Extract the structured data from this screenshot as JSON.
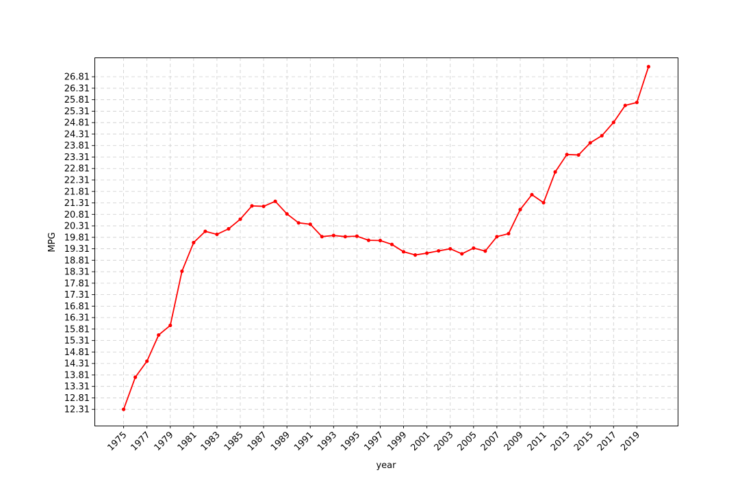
{
  "chart_data": {
    "type": "line",
    "title": "",
    "xlabel": "year",
    "ylabel": "MPG",
    "grid": true,
    "line_color": "#ff0000",
    "marker": "circle",
    "xlim": [
      1972.5,
      2022.5
    ],
    "ylim": [
      11.6,
      27.65
    ],
    "x_ticks": [
      1975,
      1977,
      1979,
      1981,
      1983,
      1985,
      1987,
      1989,
      1991,
      1993,
      1995,
      1997,
      1999,
      2001,
      2003,
      2005,
      2007,
      2009,
      2011,
      2013,
      2015,
      2017,
      2019
    ],
    "x_tick_labels": [
      "1975",
      "1977",
      "1979",
      "1981",
      "1983",
      "1985",
      "1987",
      "1989",
      "1991",
      "1993",
      "1995",
      "1997",
      "1999",
      "2001",
      "2003",
      "2005",
      "2007",
      "2009",
      "2011",
      "2013",
      "2015",
      "2017",
      "2019"
    ],
    "y_ticks": [
      12.31,
      12.81,
      13.31,
      13.81,
      14.31,
      14.81,
      15.31,
      15.81,
      16.31,
      16.81,
      17.31,
      17.81,
      18.31,
      18.81,
      19.31,
      19.81,
      20.31,
      20.81,
      21.31,
      21.81,
      22.31,
      22.81,
      23.31,
      23.81,
      24.31,
      24.81,
      25.31,
      25.81,
      26.31,
      26.81
    ],
    "y_tick_labels": [
      "12.31",
      "12.81",
      "13.31",
      "13.81",
      "14.31",
      "14.81",
      "15.31",
      "15.81",
      "16.31",
      "16.81",
      "17.31",
      "17.81",
      "18.31",
      "18.81",
      "19.31",
      "19.81",
      "20.31",
      "20.81",
      "21.31",
      "21.81",
      "22.31",
      "22.81",
      "23.31",
      "23.81",
      "24.31",
      "24.81",
      "25.31",
      "25.81",
      "26.31",
      "26.81"
    ],
    "x": [
      1975,
      1976,
      1977,
      1978,
      1979,
      1980,
      1981,
      1982,
      1983,
      1984,
      1985,
      1986,
      1987,
      1988,
      1989,
      1990,
      1991,
      1992,
      1993,
      1994,
      1995,
      1996,
      1997,
      1998,
      1999,
      2000,
      2001,
      2002,
      2003,
      2004,
      2005,
      2006,
      2007,
      2008,
      2009,
      2010,
      2011,
      2012,
      2013,
      2014,
      2015,
      2016,
      2017,
      2018,
      2019,
      2020
    ],
    "y": [
      12.31,
      13.71,
      14.41,
      15.55,
      15.97,
      18.33,
      19.58,
      20.07,
      19.94,
      20.18,
      20.6,
      21.18,
      21.16,
      21.38,
      20.83,
      20.44,
      20.38,
      19.84,
      19.89,
      19.84,
      19.86,
      19.68,
      19.67,
      19.5,
      19.18,
      19.04,
      19.12,
      19.22,
      19.31,
      19.09,
      19.34,
      19.21,
      19.84,
      19.97,
      21.02,
      21.67,
      21.32,
      22.66,
      23.42,
      23.4,
      23.93,
      24.24,
      24.82,
      25.56,
      25.69,
      27.25
    ]
  }
}
